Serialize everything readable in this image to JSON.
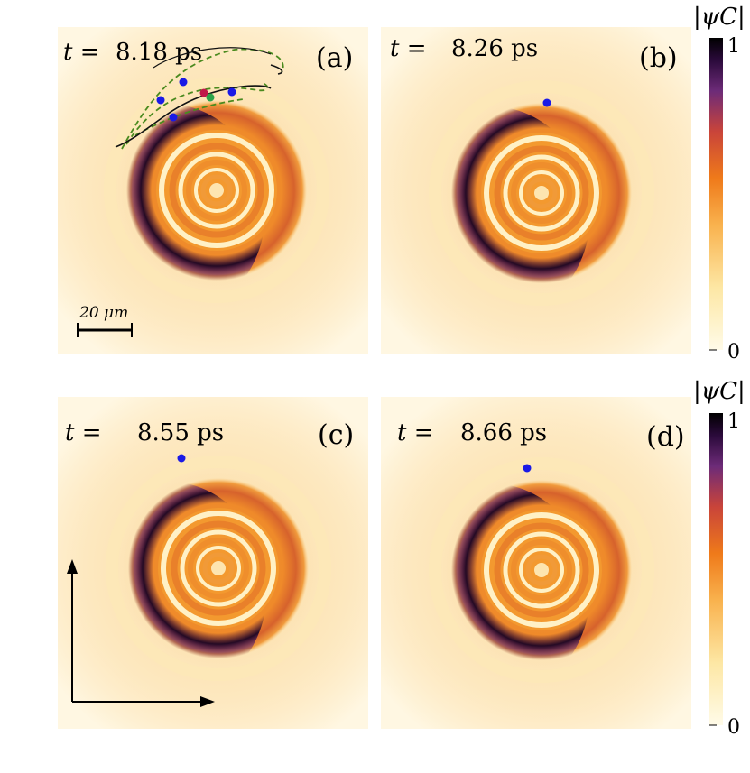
{
  "panels": [
    {
      "id": "a",
      "time_value": "8.18",
      "time_unit": "ps",
      "letter": "(a)",
      "scale_bar_label": "20 μm",
      "blue_dots": 5,
      "trajectories_shown": true
    },
    {
      "id": "b",
      "time_value": "8.26",
      "time_unit": "ps",
      "letter": "(b)",
      "blue_dots": 1
    },
    {
      "id": "c",
      "time_value": "8.55",
      "time_unit": "ps",
      "letter": "(c)",
      "blue_dots": 1,
      "axes_arrows_shown": true
    },
    {
      "id": "d",
      "time_value": "8.66",
      "time_unit": "ps",
      "letter": "(d)",
      "blue_dots": 1
    }
  ],
  "time_prefix": "t =",
  "colorbars": [
    {
      "label": "|ψC|",
      "max_label": "1",
      "min_label": "0"
    },
    {
      "label": "|ψC|",
      "max_label": "1",
      "min_label": "0"
    }
  ],
  "colors": {
    "vortex_dot": "#1a1ae6",
    "trajectory_dashed": "#4a8a1e",
    "trajectory_solid": "#111111",
    "colormap": [
      "#fffbe8",
      "#fde7a4",
      "#f9b24e",
      "#ef7a1a",
      "#c9443a",
      "#6d2b78",
      "#2a0a3a",
      "#000000"
    ]
  }
}
